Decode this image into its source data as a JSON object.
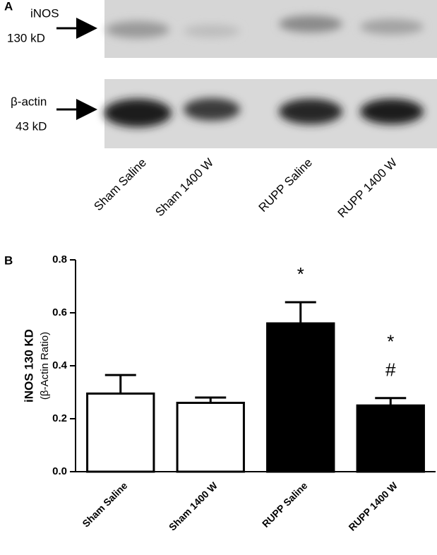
{
  "blot": {
    "panel_label": "A",
    "rows": [
      {
        "name": "iNOS",
        "size": "130 kD"
      },
      {
        "name": "β-actin",
        "size": "43 kD"
      }
    ],
    "lanes": [
      "Sham Saline",
      "Sham 1400 W",
      "RUPP Saline",
      "RUPP 1400 W"
    ]
  },
  "chart_data": {
    "type": "bar",
    "panel_label": "B",
    "y_label": [
      "iNOS 130 KD",
      "(β-Actin Ratio)"
    ],
    "categories": [
      "Sham Saline",
      "Sham 1400 W",
      "RUPP Saline",
      "RUPP 1400 W"
    ],
    "values": [
      0.295,
      0.26,
      0.56,
      0.25
    ],
    "errors": [
      0.07,
      0.02,
      0.08,
      0.028
    ],
    "colors": [
      "#ffffff",
      "#ffffff",
      "#000000",
      "#000000"
    ],
    "bar_annotations": [
      [],
      [],
      [
        "*"
      ],
      [
        "*",
        "#"
      ]
    ],
    "ylim": [
      0,
      0.8
    ],
    "yticks": [
      {
        "value": 0,
        "label": "0.0"
      },
      {
        "value": 0.2,
        "label": "0.2"
      },
      {
        "value": 0.4,
        "label": "0.4"
      },
      {
        "value": 0.6,
        "label": "0.6"
      },
      {
        "value": 0.8,
        "label": "0.8"
      }
    ]
  }
}
